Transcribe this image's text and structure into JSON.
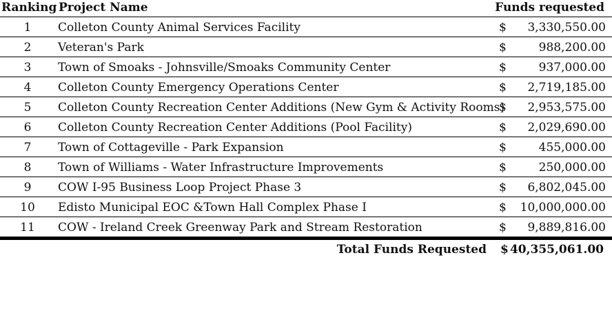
{
  "headers": {
    "ranking": "Ranking",
    "project_name": "Project Name",
    "funds_requested": "Funds requested"
  },
  "rows": [
    {
      "rank": "1",
      "name": "Colleton County Animal Services Facility",
      "currency": "$",
      "amount": "3,330,550.00"
    },
    {
      "rank": "2",
      "name": "Veteran's Park",
      "currency": "$",
      "amount": "988,200.00"
    },
    {
      "rank": "3",
      "name": "Town of Smoaks - Johnsville/Smoaks Community Center",
      "currency": "$",
      "amount": "937,000.00"
    },
    {
      "rank": "4",
      "name": "Colleton County Emergency Operations Center",
      "currency": "$",
      "amount": "2,719,185.00"
    },
    {
      "rank": "5",
      "name": "Colleton County Recreation Center Additions (New Gym & Activity Rooms)",
      "currency": "$",
      "amount": "2,953,575.00"
    },
    {
      "rank": "6",
      "name": "Colleton County Recreation Center Additions (Pool Facility)",
      "currency": "$",
      "amount": "2,029,690.00"
    },
    {
      "rank": "7",
      "name": "Town of Cottageville - Park Expansion",
      "currency": "$",
      "amount": "455,000.00"
    },
    {
      "rank": "8",
      "name": "Town of Williams - Water Infrastructure Improvements",
      "currency": "$",
      "amount": "250,000.00"
    },
    {
      "rank": "9",
      "name": "COW I-95 Business Loop Project Phase 3",
      "currency": "$",
      "amount": "6,802,045.00"
    },
    {
      "rank": "10",
      "name": "Edisto Municipal EOC &Town Hall Complex Phase I",
      "currency": "$",
      "amount": "10,000,000.00"
    },
    {
      "rank": "11",
      "name": "COW - Ireland Creek Greenway Park and Stream Restoration",
      "currency": "$",
      "amount": "9,889,816.00"
    }
  ],
  "total": {
    "label": "Total Funds Requested",
    "currency": "$",
    "amount": "40,355,061.00"
  }
}
